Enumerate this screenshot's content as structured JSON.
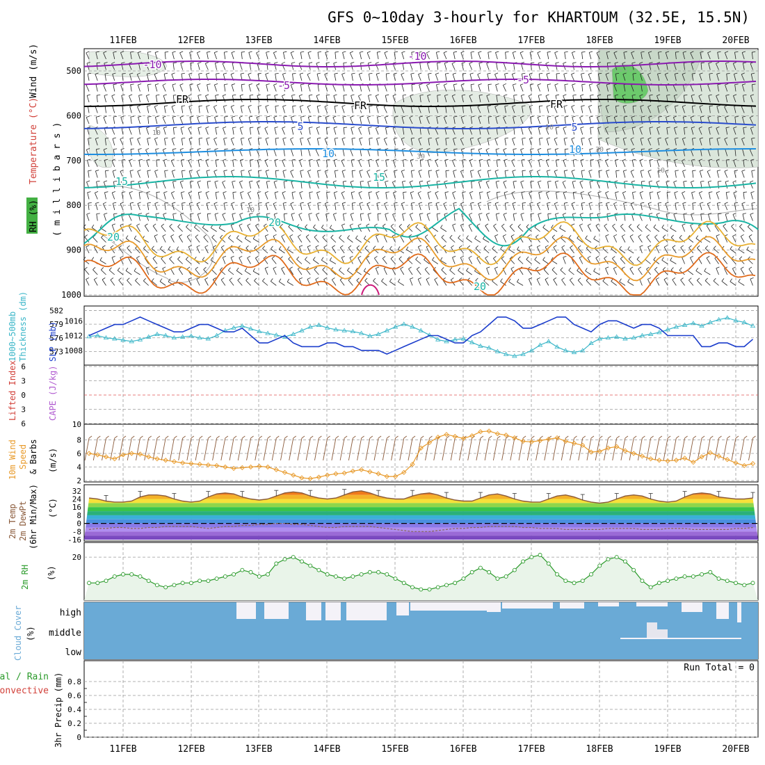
{
  "title": "GFS 0~10day 3-hourly for KHARTOUM (32.5E, 15.5N)",
  "dates": [
    "11FEB",
    "12FEB",
    "13FEB",
    "14FEB",
    "15FEB",
    "16FEB",
    "17FEB",
    "18FEB",
    "19FEB",
    "20FEB"
  ],
  "panels": {
    "upper": {
      "ylabel_parts": [
        "RH (%)",
        "Temperature (°C)",
        "Wind (m/s)"
      ],
      "yunit": "( m i l l i b a r s )",
      "yticks": [
        500,
        600,
        700,
        800,
        900,
        1000
      ],
      "isotherm_labels": [
        "-10",
        "-5",
        "FR",
        "5",
        "10",
        "15",
        "20"
      ],
      "rh_labels": [
        "10",
        "30"
      ]
    },
    "thickness": {
      "ylabel_left": "1000~500mb",
      "ylabel_left2": "Thickness (dm)",
      "ylabel_right": "SLP (mb)",
      "left_ticks": [
        "582",
        "579",
        "576",
        "573"
      ],
      "right_ticks": [
        "1016",
        "1012",
        "1008"
      ]
    },
    "cape": {
      "ylabel_left": "Lifted Index",
      "ylabel_right": "CAPE (J/kg)",
      "left_ticks": [
        "6",
        "3",
        "0",
        "3",
        "6"
      ],
      "right_ticks": [
        "10"
      ]
    },
    "wind": {
      "ylabel": "10m Wind",
      "ylabel2": "Speed",
      "ylabel3": "& Barbs",
      "yunit": "(m/s)",
      "yticks": [
        "8",
        "6",
        "4",
        "2"
      ]
    },
    "temp": {
      "ylabel": "2m Temp",
      "ylabel2": "2m DewPt",
      "ylabel3": "(6hr Min/Max)",
      "yunit": "(°C)",
      "yticks": [
        "32",
        "24",
        "16",
        "8",
        "0",
        "-8",
        "-16"
      ]
    },
    "rh": {
      "ylabel": "2m RH",
      "yunit": "(%)",
      "yticks": [
        "20"
      ]
    },
    "cloud": {
      "ylabel": "Cloud Cover",
      "yunit": "(%)",
      "levels": [
        "high",
        "middle",
        "low"
      ]
    },
    "precip": {
      "ylabel": "Total / Rain",
      "ylabel2": "Convective",
      "ylabel3": "3hr Precip (mm)",
      "yticks": [
        "0.8",
        "0.6",
        "0.4",
        "0.2",
        "0"
      ],
      "run_total": "Run Total = 0"
    }
  },
  "colors": {
    "cloud": "#6aaad6",
    "cloud_gap": "#f4f2f8",
    "rh_fill": "#e9f4e9",
    "rh_line": "#2a9a2a",
    "thickness": "#3ab6c8",
    "slp": "#1a3ccc",
    "wind_speed": "#e89a2a",
    "temp_line": "#8a5a3a"
  },
  "chart_data": [
    {
      "type": "line",
      "title": "2m RH",
      "x": [
        "10FEB12",
        "10FEB15",
        "10FEB18",
        "10FEB21",
        "11FEB00",
        "11FEB03",
        "11FEB06",
        "11FEB09",
        "11FEB12",
        "11FEB15",
        "11FEB18",
        "11FEB21",
        "12FEB00",
        "12FEB03",
        "12FEB06",
        "12FEB09",
        "12FEB12",
        "12FEB15",
        "12FEB18",
        "12FEB21",
        "13FEB00",
        "13FEB03",
        "13FEB06",
        "13FEB09",
        "13FEB12",
        "13FEB15",
        "13FEB18",
        "13FEB21",
        "14FEB00",
        "14FEB03",
        "14FEB06",
        "14FEB09",
        "14FEB12",
        "14FEB15",
        "14FEB18",
        "14FEB21",
        "15FEB00",
        "15FEB03",
        "15FEB06",
        "15FEB09",
        "15FEB12",
        "15FEB15",
        "15FEB18",
        "15FEB21",
        "16FEB00",
        "16FEB03",
        "16FEB06",
        "16FEB09",
        "16FEB12",
        "16FEB15",
        "16FEB18",
        "16FEB21",
        "17FEB00",
        "17FEB03",
        "17FEB06",
        "17FEB09",
        "17FEB12",
        "17FEB15",
        "17FEB18",
        "17FEB21",
        "18FEB00",
        "18FEB03",
        "18FEB06",
        "18FEB09",
        "18FEB12",
        "18FEB15",
        "18FEB18",
        "18FEB21",
        "19FEB00",
        "19FEB03",
        "19FEB06",
        "19FEB09",
        "19FEB12",
        "19FEB15",
        "19FEB18",
        "19FEB21",
        "20FEB00",
        "20FEB03",
        "20FEB06"
      ],
      "values": [
        8,
        8,
        9,
        11,
        12,
        12,
        11,
        9,
        7,
        6,
        7,
        8,
        8,
        9,
        9,
        10,
        11,
        12,
        14,
        13,
        11,
        12,
        17,
        19,
        20,
        18,
        16,
        14,
        12,
        11,
        10,
        11,
        12,
        13,
        13,
        12,
        10,
        8,
        6,
        5,
        5,
        6,
        7,
        8,
        10,
        13,
        15,
        13,
        10,
        11,
        14,
        18,
        20,
        21,
        17,
        12,
        9,
        8,
        9,
        12,
        16,
        19,
        20,
        18,
        14,
        9,
        6,
        8,
        9,
        10,
        11,
        11,
        12,
        13,
        10,
        9,
        8,
        7,
        8
      ],
      "ylim": [
        0,
        30
      ]
    },
    {
      "type": "line",
      "title": "10m Wind Speed",
      "yunit": "m/s",
      "values": [
        6.0,
        5.8,
        5.5,
        5.2,
        5.8,
        6.0,
        5.9,
        5.5,
        5.2,
        5.0,
        4.8,
        4.6,
        4.5,
        4.4,
        4.3,
        4.2,
        4.0,
        3.8,
        3.9,
        4.0,
        4.1,
        4.0,
        3.6,
        3.2,
        2.8,
        2.4,
        2.3,
        2.5,
        2.8,
        3.0,
        3.1,
        3.4,
        3.6,
        3.3,
        3.0,
        2.6,
        2.6,
        3.2,
        4.4,
        6.8,
        7.6,
        8.4,
        8.8,
        8.5,
        8.2,
        8.6,
        9.2,
        9.3,
        8.9,
        8.7,
        8.3,
        7.8,
        7.7,
        7.9,
        8.1,
        8.3,
        7.8,
        7.5,
        7.2,
        6.2,
        6.3,
        6.8,
        7.0,
        6.4,
        6.0,
        5.6,
        5.2,
        5.0,
        4.9,
        5.0,
        5.3,
        4.7,
        5.5,
        6.1,
        5.6,
        5.1,
        4.6,
        4.2,
        4.5
      ],
      "ylim": [
        2,
        10
      ]
    },
    {
      "type": "line",
      "title": "1000~500mb Thickness / SLP",
      "series": [
        {
          "name": "Thickness (dm)",
          "values": [
            576.3,
            576.5,
            576.0,
            575.8,
            575.5,
            575.2,
            575.6,
            576.2,
            576.8,
            576.5,
            576.0,
            576.2,
            576.4,
            576.0,
            575.8,
            576.5,
            577.6,
            578.2,
            578.6,
            578.0,
            577.4,
            577.0,
            576.6,
            576.2,
            576.8,
            577.6,
            578.4,
            578.8,
            578.2,
            577.8,
            577.6,
            577.4,
            577.0,
            576.4,
            576.8,
            577.6,
            578.4,
            579.0,
            578.4,
            577.6,
            576.6,
            575.6,
            575.2,
            575.6,
            575.8,
            575.0,
            574.2,
            573.8,
            573.0,
            572.4,
            572.0,
            572.4,
            573.2,
            574.4,
            575.2,
            574.0,
            573.2,
            572.8,
            573.2,
            574.8,
            575.8,
            576.0,
            576.2,
            575.8,
            576.0,
            576.5,
            576.8,
            577.2,
            577.8,
            578.4,
            578.8,
            579.2,
            578.6,
            579.4,
            580.0,
            580.4,
            579.8,
            579.4,
            578.6
          ]
        },
        {
          "name": "SLP (mb)",
          "values": [
            1012,
            1013,
            1014,
            1015,
            1015,
            1016,
            1017,
            1016,
            1015,
            1014,
            1013,
            1013,
            1014,
            1015,
            1015,
            1014,
            1013,
            1013,
            1014,
            1012,
            1010,
            1010,
            1011,
            1012,
            1010,
            1009,
            1009,
            1009,
            1010,
            1010,
            1009,
            1009,
            1008,
            1008,
            1008,
            1007,
            1008,
            1009,
            1010,
            1011,
            1012,
            1012,
            1011,
            1010,
            1010,
            1012,
            1013,
            1015,
            1017,
            1017,
            1016,
            1014,
            1014,
            1015,
            1016,
            1017,
            1017,
            1015,
            1014,
            1013,
            1015,
            1016,
            1016,
            1015,
            1014,
            1015,
            1015,
            1014,
            1012,
            1012,
            1012,
            1012,
            1009,
            1009,
            1010,
            1010,
            1009,
            1009,
            1011
          ]
        }
      ]
    },
    {
      "type": "area",
      "title": "2m Temp / DewPt",
      "series": [
        {
          "name": "2m Temp",
          "values": [
            25,
            24,
            22,
            21,
            21,
            22,
            26,
            28,
            28,
            27,
            24,
            22,
            21,
            22,
            26,
            29,
            30,
            29,
            26,
            24,
            23,
            24,
            27,
            30,
            31,
            30,
            27,
            25,
            24,
            25,
            28,
            31,
            32,
            30,
            27,
            25,
            24,
            24,
            27,
            29,
            30,
            28,
            25,
            23,
            22,
            22,
            25,
            28,
            29,
            27,
            24,
            22,
            21,
            21,
            24,
            27,
            28,
            26,
            23,
            21,
            20,
            21,
            24,
            27,
            28,
            27,
            24,
            22,
            21,
            22,
            26,
            29,
            30,
            29,
            26,
            25,
            24,
            24,
            25
          ]
        },
        {
          "name": "2m DewPt",
          "values": [
            -6,
            -5,
            -5,
            -4,
            -4,
            -5,
            -5,
            -4,
            -4,
            -3,
            -3,
            -3,
            -3,
            -4,
            -5,
            -4,
            -3,
            -3,
            -2,
            -2,
            -1,
            -1,
            0,
            0,
            -1,
            -1,
            -2,
            -3,
            -4,
            -4,
            -3,
            -3,
            -3,
            -3,
            -4,
            -5,
            -6,
            -7,
            -8,
            -8,
            -8,
            -7,
            -6,
            -5,
            -5,
            -4,
            -4,
            -3,
            -3,
            -3,
            -3,
            -4,
            -4,
            -5,
            -5,
            -5,
            -6,
            -6,
            -6,
            -6,
            -6,
            -5,
            -5,
            -5,
            -5,
            -6,
            -6,
            -6,
            -5,
            -5,
            -5,
            -6,
            -6,
            -6,
            -6,
            -6,
            -5,
            -5,
            -4
          ]
        }
      ],
      "ylim": [
        -16,
        36
      ]
    }
  ]
}
